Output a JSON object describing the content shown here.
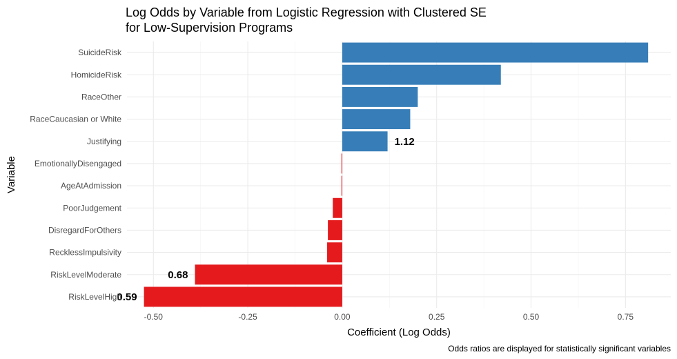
{
  "chart_data": {
    "type": "bar",
    "orientation": "horizontal",
    "title": "Log Odds by Variable from Logistic Regression with Clustered SE",
    "subtitle": "for Low-Supervision Programs",
    "xlabel": "Coefficient (Log Odds)",
    "ylabel": "Variable",
    "caption": "Odds ratios are displayed for statistically significant variables",
    "xlim": [
      -0.57,
      0.87
    ],
    "xticks": [
      -0.5,
      -0.25,
      0,
      0.25,
      0.5,
      0.75
    ],
    "xtick_labels": [
      "-0.50",
      "-0.25",
      "0.00",
      "0.25",
      "0.50",
      "0.75"
    ],
    "grid": true,
    "categories": [
      "SuicideRisk",
      "HomicideRisk",
      "RaceOther",
      "RaceCaucasian or White",
      "Justifying",
      "EmotionallyDisengaged",
      "AgeAtAdmission",
      "PoorJudgement",
      "DisregardForOthers",
      "RecklessImpulsivity",
      "RiskLevelModerate",
      "RiskLevelHigh"
    ],
    "values": [
      0.81,
      0.42,
      0.2,
      0.18,
      0.12,
      -0.002,
      -0.002,
      -0.025,
      -0.038,
      -0.04,
      -0.39,
      -0.525
    ],
    "labels": [
      null,
      null,
      null,
      null,
      "1.12",
      null,
      null,
      null,
      null,
      null,
      "0.68",
      "0.59"
    ],
    "colors": {
      "positive": "#377eb8",
      "negative": "#e41a1c"
    }
  }
}
